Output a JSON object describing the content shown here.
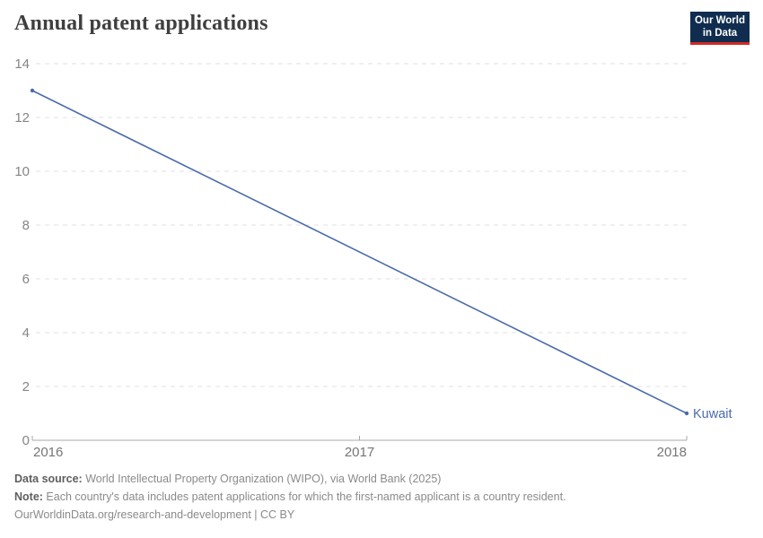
{
  "header": {
    "title": "Annual patent applications",
    "logo": {
      "line1": "Our World",
      "line2": "in Data",
      "bg_color": "#102d50",
      "accent_color": "#cf2b26"
    }
  },
  "chart_data": {
    "type": "line",
    "title": "Annual patent applications",
    "xlabel": "",
    "ylabel": "",
    "xlim": [
      2016,
      2018
    ],
    "ylim": [
      0,
      14
    ],
    "x_ticks": [
      "2016",
      "2017",
      "2018"
    ],
    "x_tick_values": [
      2016,
      2017,
      2018
    ],
    "y_ticks": [
      0,
      2,
      4,
      6,
      8,
      10,
      12,
      14
    ],
    "grid": "horizontal dashed",
    "legend_position": "end-of-line label",
    "series": [
      {
        "name": "Kuwait",
        "color": "#4a6ba8",
        "points": [
          {
            "x": 2016,
            "y": 13
          },
          {
            "x": 2018,
            "y": 1
          }
        ]
      }
    ]
  },
  "chart_colors": {
    "gridline": "#e2e2e2",
    "axis_line": "#a8a8a8",
    "tick_label": "#858585",
    "x_tick_label": "#767676"
  },
  "footer": {
    "data_source_label": "Data source:",
    "data_source_text": " World Intellectual Property Organization (WIPO), via World Bank (2025)",
    "note_label": "Note:",
    "note_text": " Each country's data includes patent applications for which the first-named applicant is a country resident.",
    "license_text": "OurWorldinData.org/research-and-development | CC BY"
  }
}
